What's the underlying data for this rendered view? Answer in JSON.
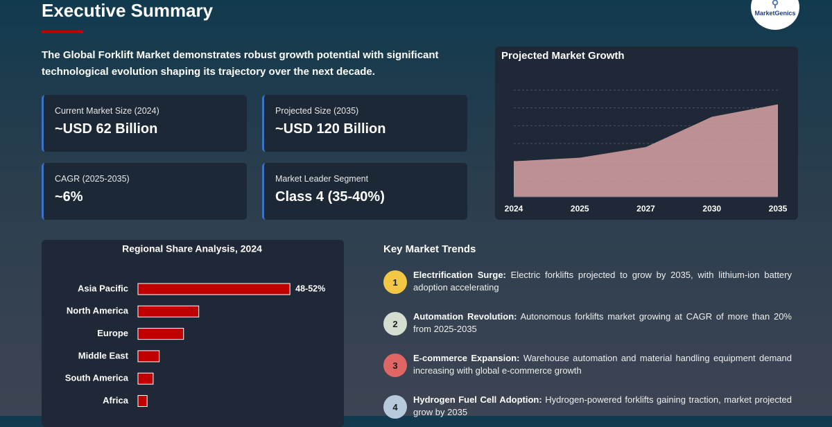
{
  "header": {
    "title": "Executive Summary",
    "logo": "MarketGenics"
  },
  "summary": "The Global Forklift Market demonstrates robust growth potential with significant technological evolution shaping its trajectory over the next decade.",
  "metrics": [
    {
      "label": "Current Market Size (2024)",
      "value": "~USD 62 Billion"
    },
    {
      "label": "Projected Size (2035)",
      "value": "~USD 120 Billion"
    },
    {
      "label": "CAGR (2025-2035)",
      "value": "~6%"
    },
    {
      "label": "Market Leader Segment",
      "value": "Class 4 (35-40%)"
    }
  ],
  "chart_data": [
    {
      "type": "area",
      "title": "Projected Market Growth",
      "categories": [
        "2024",
        "2025",
        "2027",
        "2030",
        "2035"
      ],
      "values": [
        40,
        44,
        56,
        90,
        104
      ],
      "color": "#d9a3a3",
      "ylim": [
        0,
        120
      ],
      "grid": true
    },
    {
      "type": "hbar",
      "title": "Regional Share Analysis, 2024",
      "categories": [
        "Asia Pacific",
        "North America",
        "Europe",
        "Middle East",
        "South America",
        "Africa"
      ],
      "values": [
        50,
        20,
        15,
        7,
        5,
        3
      ],
      "value_labels": [
        "48-52%",
        null,
        null,
        null,
        null,
        null
      ],
      "color": "#c00000",
      "xlim": [
        0,
        60
      ]
    }
  ],
  "trends": {
    "title": "Key Market Trends",
    "items": [
      {
        "number": "1",
        "title": "Electrification Surge:",
        "text": "Electric forklifts projected to grow by 2035, with lithium-ion battery adoption accelerating",
        "color": "#f2c744"
      },
      {
        "number": "2",
        "title": "Automation Revolution:",
        "text": "Autonomous forklifts market growing at CAGR of more than 20% from 2025-2035",
        "color": "#d5dcd0"
      },
      {
        "number": "3",
        "title": "E-commerce Expansion:",
        "text": "Warehouse automation and material handling equipment demand increasing with global e-commerce growth",
        "color": "#e06666"
      },
      {
        "number": "4",
        "title": "Hydrogen Fuel Cell Adoption:",
        "text": "Hydrogen-powered forklifts gaining traction, market projected grow by 2035",
        "color": "#b7c9dc"
      }
    ]
  }
}
